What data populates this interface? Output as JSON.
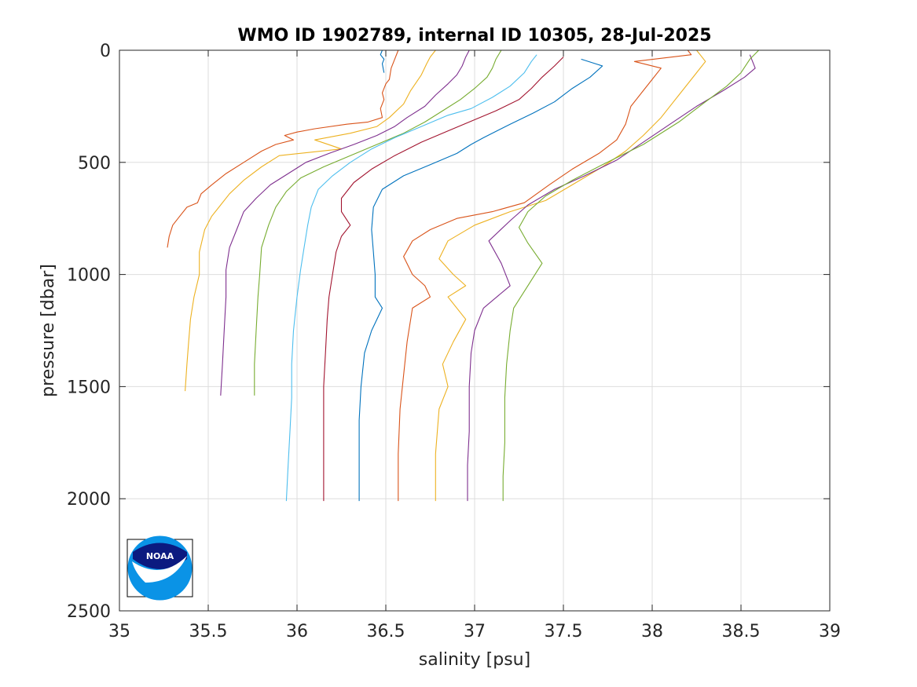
{
  "chart_data": {
    "type": "line",
    "title": "WMO ID 1902789, internal ID 10305, 28-Jul-2025",
    "xlabel": "salinity [psu]",
    "ylabel": "pressure [dbar]",
    "xlim": [
      35,
      39
    ],
    "ylim": [
      0,
      2500
    ],
    "y_reversed": true,
    "grid": true,
    "x_ticks": [
      "35",
      "35.5",
      "36",
      "36.5",
      "37",
      "37.5",
      "38",
      "38.5",
      "39"
    ],
    "y_ticks": [
      "0",
      "500",
      "1000",
      "1500",
      "2000",
      "2500"
    ],
    "offset_note": "",
    "logo": "noaa-logo",
    "series": [
      {
        "color": "#0072BD",
        "points": [
          [
            36.48,
            0
          ],
          [
            36.47,
            20
          ],
          [
            36.49,
            40
          ],
          [
            36.48,
            60
          ],
          [
            36.49,
            100
          ]
        ]
      },
      {
        "color": "#D95319",
        "points": [
          [
            36.57,
            0
          ],
          [
            36.55,
            40
          ],
          [
            36.53,
            80
          ],
          [
            36.52,
            130
          ],
          [
            36.5,
            150
          ],
          [
            36.48,
            190
          ],
          [
            36.49,
            220
          ],
          [
            36.47,
            260
          ],
          [
            36.48,
            300
          ],
          [
            36.4,
            320
          ],
          [
            36.28,
            330
          ],
          [
            36.1,
            350
          ],
          [
            36.0,
            365
          ],
          [
            35.93,
            380
          ],
          [
            35.98,
            400
          ],
          [
            35.88,
            420
          ],
          [
            35.8,
            450
          ],
          [
            35.7,
            500
          ],
          [
            35.6,
            550
          ],
          [
            35.52,
            600
          ],
          [
            35.46,
            640
          ],
          [
            35.44,
            680
          ],
          [
            35.38,
            700
          ],
          [
            35.34,
            740
          ],
          [
            35.3,
            780
          ],
          [
            35.28,
            830
          ],
          [
            35.27,
            880
          ]
        ]
      },
      {
        "color": "#EDB120",
        "points": [
          [
            36.78,
            0
          ],
          [
            36.75,
            30
          ],
          [
            36.73,
            60
          ],
          [
            36.7,
            110
          ],
          [
            36.64,
            180
          ],
          [
            36.6,
            240
          ],
          [
            36.52,
            300
          ],
          [
            36.45,
            340
          ],
          [
            36.3,
            370
          ],
          [
            36.1,
            400
          ],
          [
            36.25,
            440
          ],
          [
            35.9,
            470
          ],
          [
            35.8,
            520
          ],
          [
            35.7,
            580
          ],
          [
            35.62,
            640
          ],
          [
            35.56,
            700
          ],
          [
            35.52,
            740
          ],
          [
            35.48,
            800
          ],
          [
            35.45,
            900
          ],
          [
            35.45,
            1000
          ],
          [
            35.42,
            1100
          ],
          [
            35.4,
            1200
          ],
          [
            35.39,
            1300
          ],
          [
            35.38,
            1400
          ],
          [
            35.37,
            1520
          ]
        ]
      },
      {
        "color": "#7E2F8E",
        "points": [
          [
            36.97,
            0
          ],
          [
            36.95,
            30
          ],
          [
            36.93,
            70
          ],
          [
            36.9,
            110
          ],
          [
            36.85,
            150
          ],
          [
            36.78,
            200
          ],
          [
            36.72,
            250
          ],
          [
            36.62,
            300
          ],
          [
            36.55,
            340
          ],
          [
            36.45,
            380
          ],
          [
            36.32,
            420
          ],
          [
            36.18,
            460
          ],
          [
            36.05,
            500
          ],
          [
            35.95,
            550
          ],
          [
            35.85,
            600
          ],
          [
            35.77,
            660
          ],
          [
            35.7,
            720
          ],
          [
            35.66,
            800
          ],
          [
            35.62,
            880
          ],
          [
            35.6,
            980
          ],
          [
            35.6,
            1100
          ],
          [
            35.59,
            1250
          ],
          [
            35.58,
            1400
          ],
          [
            35.57,
            1540
          ]
        ]
      },
      {
        "color": "#77AC30",
        "points": [
          [
            37.15,
            0
          ],
          [
            37.12,
            40
          ],
          [
            37.1,
            80
          ],
          [
            37.07,
            120
          ],
          [
            37.0,
            170
          ],
          [
            36.92,
            220
          ],
          [
            36.82,
            270
          ],
          [
            36.72,
            320
          ],
          [
            36.6,
            370
          ],
          [
            36.45,
            420
          ],
          [
            36.3,
            470
          ],
          [
            36.15,
            520
          ],
          [
            36.02,
            570
          ],
          [
            35.94,
            630
          ],
          [
            35.88,
            700
          ],
          [
            35.84,
            780
          ],
          [
            35.8,
            880
          ],
          [
            35.79,
            1000
          ],
          [
            35.78,
            1100
          ],
          [
            35.77,
            1250
          ],
          [
            35.76,
            1400
          ],
          [
            35.76,
            1540
          ]
        ]
      },
      {
        "color": "#4DBEEE",
        "points": [
          [
            37.35,
            20
          ],
          [
            37.32,
            50
          ],
          [
            37.28,
            100
          ],
          [
            37.2,
            160
          ],
          [
            37.1,
            210
          ],
          [
            36.98,
            260
          ],
          [
            36.85,
            290
          ],
          [
            36.7,
            340
          ],
          [
            36.55,
            390
          ],
          [
            36.42,
            440
          ],
          [
            36.3,
            500
          ],
          [
            36.2,
            560
          ],
          [
            36.12,
            620
          ],
          [
            36.08,
            700
          ],
          [
            36.06,
            780
          ],
          [
            36.04,
            880
          ],
          [
            36.02,
            980
          ],
          [
            36.0,
            1100
          ],
          [
            35.98,
            1250
          ],
          [
            35.97,
            1400
          ],
          [
            35.97,
            1550
          ],
          [
            35.96,
            1700
          ],
          [
            35.95,
            1850
          ],
          [
            35.94,
            2010
          ]
        ]
      },
      {
        "color": "#A2142F",
        "points": [
          [
            37.5,
            30
          ],
          [
            37.45,
            70
          ],
          [
            37.38,
            120
          ],
          [
            37.32,
            170
          ],
          [
            37.25,
            220
          ],
          [
            37.12,
            270
          ],
          [
            37.0,
            310
          ],
          [
            36.85,
            360
          ],
          [
            36.7,
            410
          ],
          [
            36.55,
            470
          ],
          [
            36.42,
            530
          ],
          [
            36.32,
            590
          ],
          [
            36.25,
            660
          ],
          [
            36.25,
            720
          ],
          [
            36.3,
            780
          ],
          [
            36.25,
            830
          ],
          [
            36.22,
            900
          ],
          [
            36.2,
            1000
          ],
          [
            36.18,
            1100
          ],
          [
            36.17,
            1200
          ],
          [
            36.16,
            1350
          ],
          [
            36.15,
            1500
          ],
          [
            36.15,
            1650
          ],
          [
            36.15,
            1800
          ],
          [
            36.15,
            2010
          ]
        ]
      },
      {
        "color": "#0072BD",
        "points": [
          [
            37.6,
            40
          ],
          [
            37.72,
            70
          ],
          [
            37.65,
            120
          ],
          [
            37.55,
            170
          ],
          [
            37.45,
            230
          ],
          [
            37.33,
            280
          ],
          [
            37.2,
            330
          ],
          [
            37.05,
            390
          ],
          [
            36.98,
            420
          ],
          [
            36.9,
            460
          ],
          [
            36.75,
            510
          ],
          [
            36.6,
            560
          ],
          [
            36.48,
            620
          ],
          [
            36.43,
            700
          ],
          [
            36.42,
            800
          ],
          [
            36.43,
            900
          ],
          [
            36.44,
            1000
          ],
          [
            36.44,
            1100
          ],
          [
            36.48,
            1150
          ],
          [
            36.42,
            1250
          ],
          [
            36.38,
            1350
          ],
          [
            36.36,
            1500
          ],
          [
            36.35,
            1650
          ],
          [
            36.35,
            1800
          ],
          [
            36.35,
            2010
          ]
        ]
      },
      {
        "color": "#D95319",
        "points": [
          [
            38.2,
            0
          ],
          [
            38.22,
            20
          ],
          [
            37.9,
            50
          ],
          [
            38.05,
            80
          ],
          [
            38.0,
            130
          ],
          [
            37.95,
            180
          ],
          [
            37.88,
            250
          ],
          [
            37.85,
            330
          ],
          [
            37.8,
            400
          ],
          [
            37.7,
            460
          ],
          [
            37.55,
            530
          ],
          [
            37.42,
            600
          ],
          [
            37.28,
            680
          ],
          [
            37.1,
            720
          ],
          [
            36.9,
            750
          ],
          [
            36.75,
            800
          ],
          [
            36.65,
            850
          ],
          [
            36.6,
            920
          ],
          [
            36.65,
            1000
          ],
          [
            36.72,
            1050
          ],
          [
            36.75,
            1100
          ],
          [
            36.65,
            1150
          ],
          [
            36.62,
            1300
          ],
          [
            36.6,
            1450
          ],
          [
            36.58,
            1600
          ],
          [
            36.57,
            1800
          ],
          [
            36.57,
            2010
          ]
        ]
      },
      {
        "color": "#EDB120",
        "points": [
          [
            38.25,
            0
          ],
          [
            38.3,
            50
          ],
          [
            38.25,
            100
          ],
          [
            38.15,
            200
          ],
          [
            38.05,
            300
          ],
          [
            37.95,
            380
          ],
          [
            37.85,
            450
          ],
          [
            37.72,
            520
          ],
          [
            37.55,
            600
          ],
          [
            37.4,
            670
          ],
          [
            37.2,
            720
          ],
          [
            37.0,
            780
          ],
          [
            36.85,
            850
          ],
          [
            36.8,
            930
          ],
          [
            36.88,
            1000
          ],
          [
            36.95,
            1050
          ],
          [
            36.85,
            1100
          ],
          [
            36.95,
            1200
          ],
          [
            36.88,
            1300
          ],
          [
            36.82,
            1400
          ],
          [
            36.85,
            1500
          ],
          [
            36.8,
            1600
          ],
          [
            36.78,
            1800
          ],
          [
            36.78,
            2010
          ]
        ]
      },
      {
        "color": "#7E2F8E",
        "points": [
          [
            38.55,
            20
          ],
          [
            38.58,
            80
          ],
          [
            38.52,
            120
          ],
          [
            38.4,
            180
          ],
          [
            38.25,
            250
          ],
          [
            38.1,
            330
          ],
          [
            37.95,
            410
          ],
          [
            37.8,
            490
          ],
          [
            37.62,
            560
          ],
          [
            37.45,
            620
          ],
          [
            37.3,
            690
          ],
          [
            37.2,
            760
          ],
          [
            37.08,
            850
          ],
          [
            37.15,
            950
          ],
          [
            37.2,
            1050
          ],
          [
            37.05,
            1150
          ],
          [
            37.0,
            1250
          ],
          [
            36.98,
            1350
          ],
          [
            36.97,
            1500
          ],
          [
            36.97,
            1700
          ],
          [
            36.96,
            1850
          ],
          [
            36.96,
            2010
          ]
        ]
      },
      {
        "color": "#77AC30",
        "points": [
          [
            38.6,
            0
          ],
          [
            38.55,
            40
          ],
          [
            38.5,
            100
          ],
          [
            38.42,
            160
          ],
          [
            38.3,
            230
          ],
          [
            38.15,
            320
          ],
          [
            37.95,
            420
          ],
          [
            37.72,
            510
          ],
          [
            37.55,
            580
          ],
          [
            37.4,
            650
          ],
          [
            37.3,
            720
          ],
          [
            37.25,
            790
          ],
          [
            37.3,
            860
          ],
          [
            37.38,
            950
          ],
          [
            37.3,
            1050
          ],
          [
            37.22,
            1150
          ],
          [
            37.2,
            1250
          ],
          [
            37.18,
            1400
          ],
          [
            37.17,
            1550
          ],
          [
            37.17,
            1750
          ],
          [
            37.16,
            1900
          ],
          [
            37.16,
            2010
          ]
        ]
      }
    ]
  }
}
